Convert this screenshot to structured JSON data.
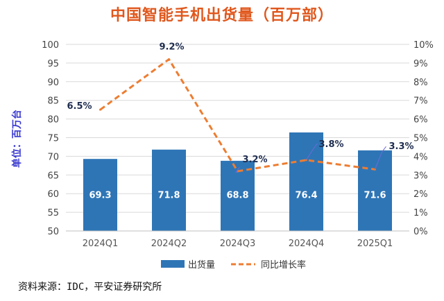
{
  "source_text": "资料来源：IDC，平安证券研究所",
  "chart_data": {
    "type": "bar",
    "title": "中国智能手机出货量（百万部）",
    "ylabel": "单位：百万台",
    "categories": [
      "2024Q1",
      "2024Q2",
      "2024Q3",
      "2024Q4",
      "2025Q1"
    ],
    "ylim": [
      50,
      100
    ],
    "y2lim": [
      0,
      10
    ],
    "yticks": [
      "50",
      "55",
      "60",
      "65",
      "70",
      "75",
      "80",
      "85",
      "90",
      "95",
      "100"
    ],
    "y2ticks": [
      "0%",
      "1%",
      "2%",
      "3%",
      "4%",
      "5%",
      "6%",
      "7%",
      "8%",
      "9%",
      "10%"
    ],
    "grid": true,
    "legend_position": "bottom",
    "series": [
      {
        "name": "出货量",
        "type": "bar",
        "axis": "left",
        "values": [
          69.3,
          71.8,
          68.8,
          76.4,
          71.6
        ],
        "labels": [
          "69.3",
          "71.8",
          "68.8",
          "76.4",
          "71.6"
        ],
        "color": "#2e75b6"
      },
      {
        "name": "同比增长率",
        "type": "line",
        "axis": "right",
        "values": [
          6.5,
          9.2,
          3.2,
          3.8,
          3.3
        ],
        "labels": [
          "6.5%",
          "9.2%",
          "3.2%",
          "3.8%",
          "3.3%"
        ],
        "color": "#ed7d31"
      }
    ]
  }
}
